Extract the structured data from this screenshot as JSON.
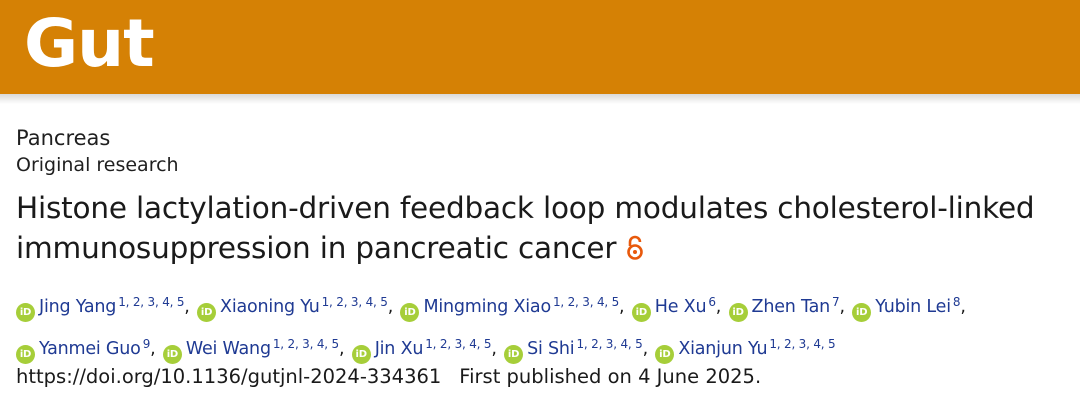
{
  "journal": {
    "logo_text": "Gut",
    "brand_color": "#d58105"
  },
  "article": {
    "section": "Pancreas",
    "type": "Original research",
    "title": "Histone lactylation-driven feedback loop modulates cholesterol-linked immunosuppression in pancreatic cancer",
    "open_access_icon": "open-access-lock-icon",
    "authors": [
      {
        "name": "Jing Yang",
        "aff": "1, 2, 3, 4, 5"
      },
      {
        "name": "Xiaoning Yu",
        "aff": "1, 2, 3, 4, 5"
      },
      {
        "name": "Mingming Xiao",
        "aff": "1, 2, 3, 4, 5"
      },
      {
        "name": "He Xu",
        "aff": "6"
      },
      {
        "name": "Zhen Tan",
        "aff": "7"
      },
      {
        "name": "Yubin Lei",
        "aff": "8"
      },
      {
        "name": "Yanmei Guo",
        "aff": "9"
      },
      {
        "name": "Wei Wang",
        "aff": "1, 2, 3, 4, 5"
      },
      {
        "name": "Jin Xu",
        "aff": "1, 2, 3, 4, 5"
      },
      {
        "name": "Si Shi",
        "aff": "1, 2, 3, 4, 5"
      },
      {
        "name": "Xianjun Yu",
        "aff": "1, 2, 3, 4, 5"
      }
    ],
    "orcid_icon_text": "iD",
    "orcid_color": "#a6ce39",
    "doi": "https://doi.org/10.1136/gutjnl-2024-334361",
    "published": "First published on 4 June 2025."
  }
}
